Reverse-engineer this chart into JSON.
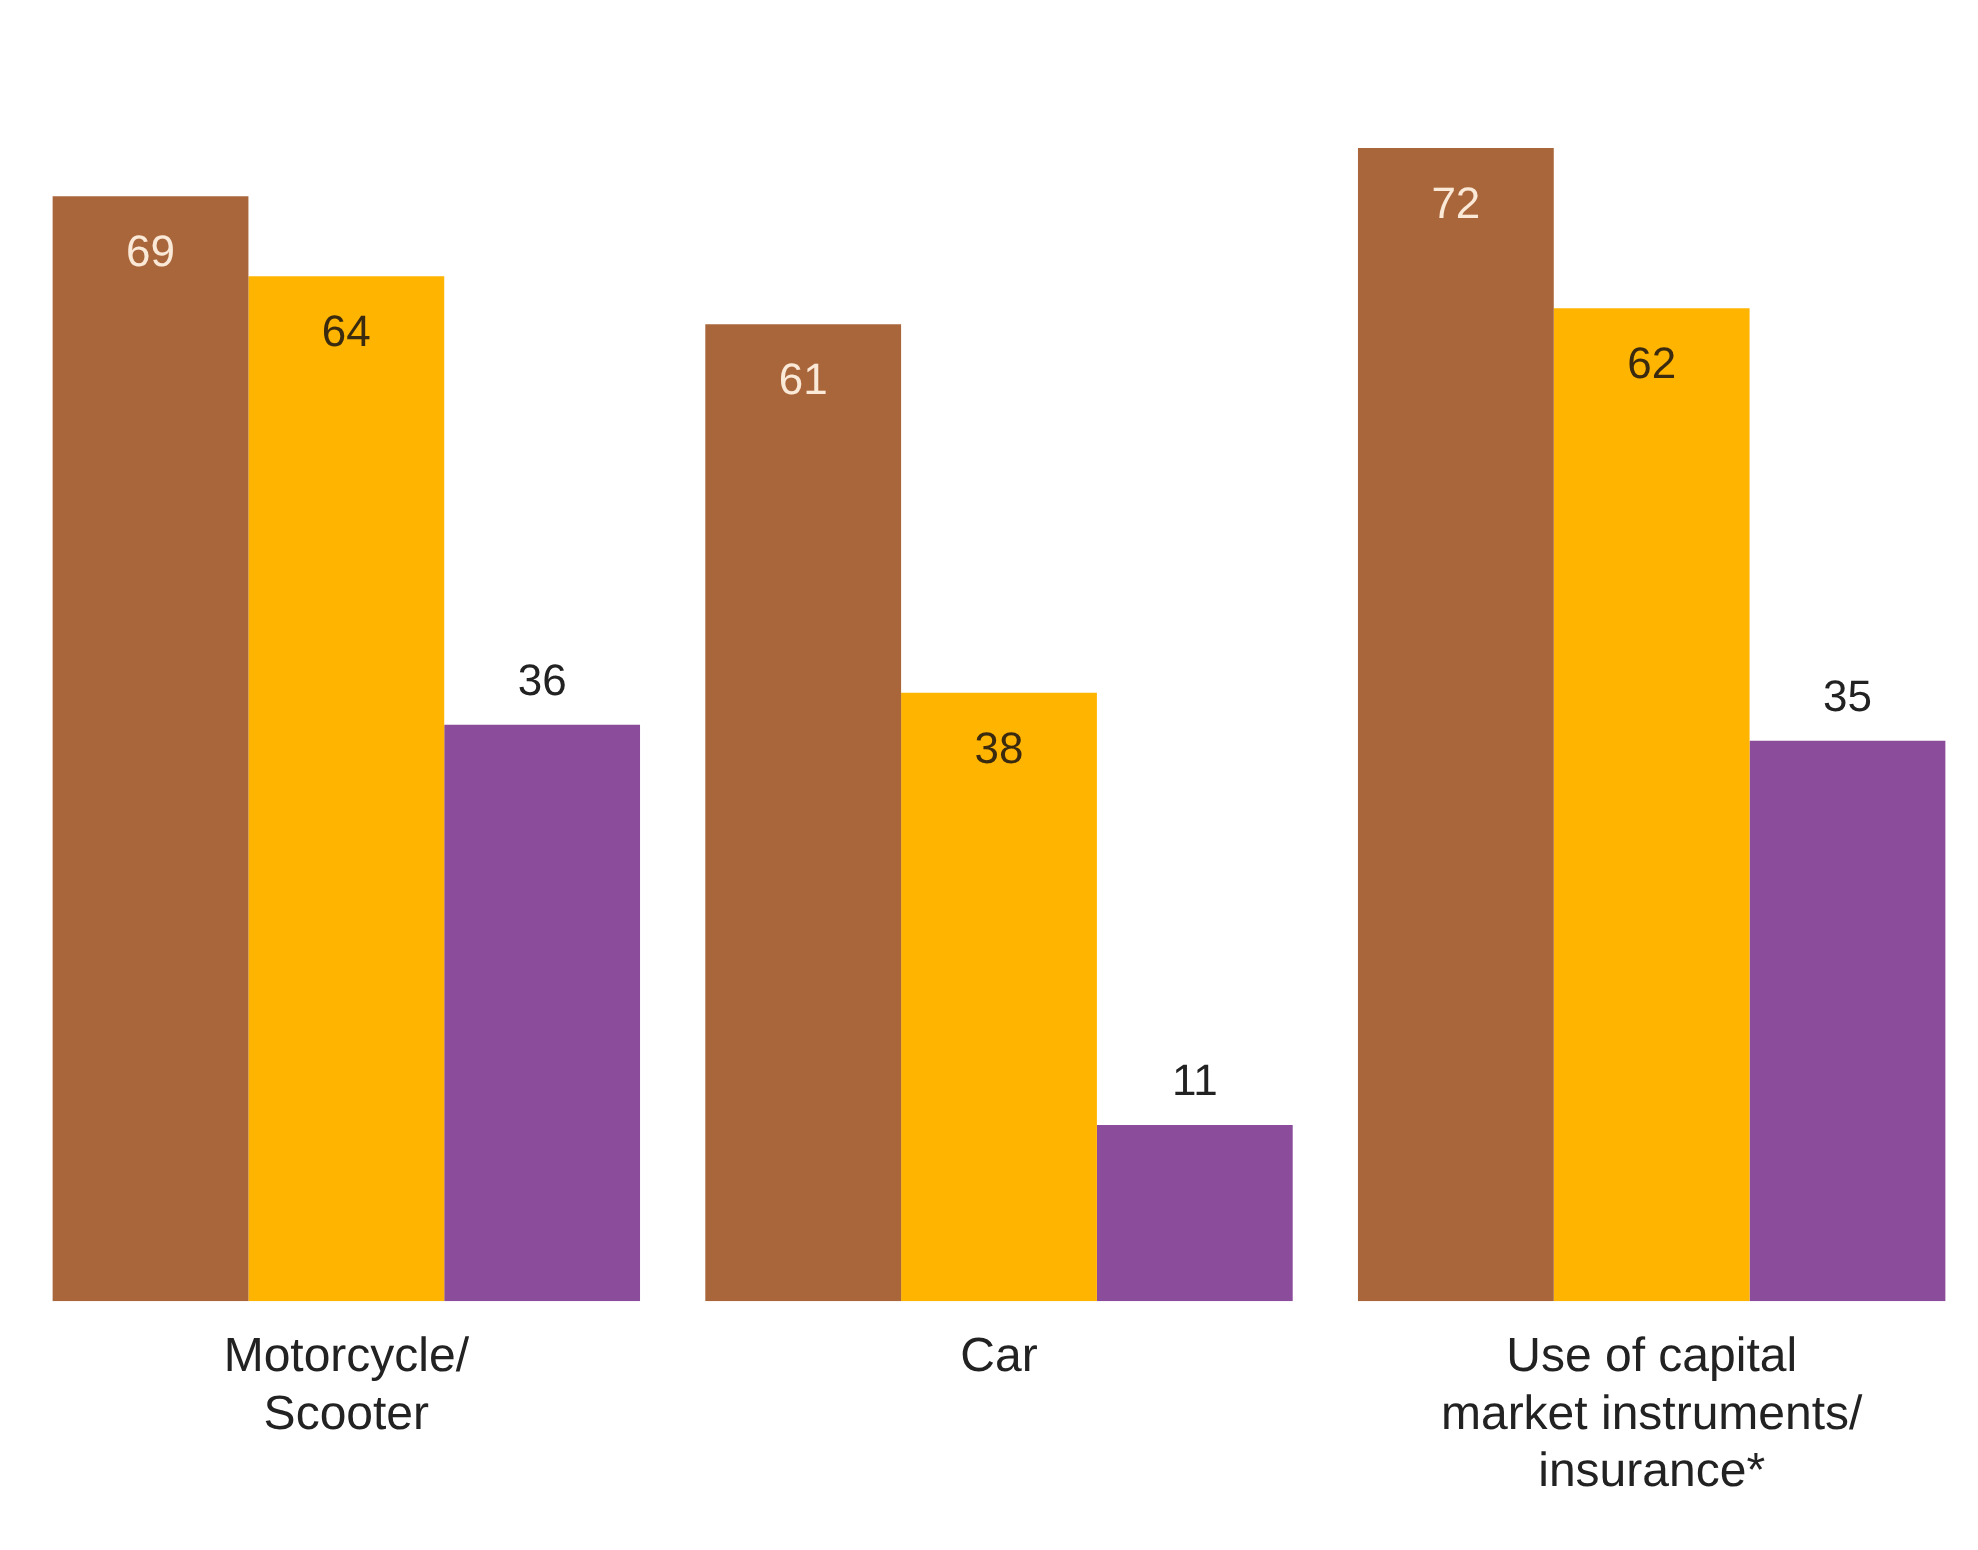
{
  "chart_data": {
    "type": "bar",
    "categories": [
      "Motorcycle/ Scooter",
      "Car",
      "Use of capital market instruments/ insurance*"
    ],
    "series": [
      {
        "color": "#a9663a",
        "values": [
          69,
          61,
          72
        ]
      },
      {
        "color": "#ffb400",
        "values": [
          64,
          38,
          62
        ]
      },
      {
        "color": "#8b4c9b",
        "values": [
          36,
          11,
          35
        ]
      }
    ],
    "tick_labels": "x",
    "grid": false,
    "legend": false,
    "data_labels": true
  }
}
